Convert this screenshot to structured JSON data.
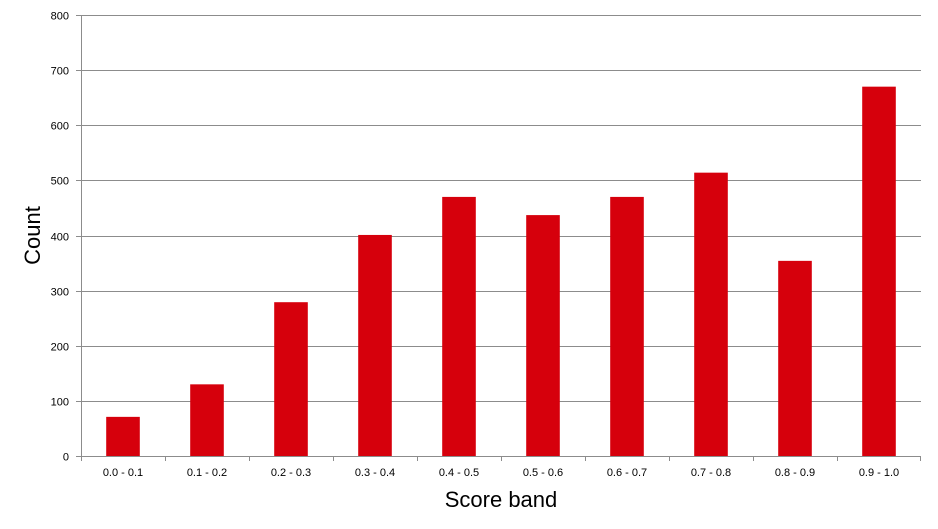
{
  "chart_data": {
    "type": "bar",
    "title": "",
    "xlabel": "Score band",
    "ylabel": "Count",
    "categories": [
      "0.0 - 0.1",
      "0.1 - 0.2",
      "0.2 - 0.3",
      "0.3 - 0.4",
      "0.4 - 0.5",
      "0.5 - 0.6",
      "0.6 - 0.7",
      "0.7 - 0.8",
      "0.8 - 0.9",
      "0.9 - 1.0"
    ],
    "values": [
      71,
      130,
      279,
      401,
      470,
      437,
      470,
      514,
      354,
      670
    ],
    "ylim": [
      0,
      800
    ],
    "yticks": [
      0,
      100,
      200,
      300,
      400,
      500,
      600,
      700,
      800
    ],
    "grid": true,
    "legend": "none",
    "colors": {
      "bar": "#d6000c",
      "grid": "#8c8c8c",
      "text": "#000000"
    }
  }
}
